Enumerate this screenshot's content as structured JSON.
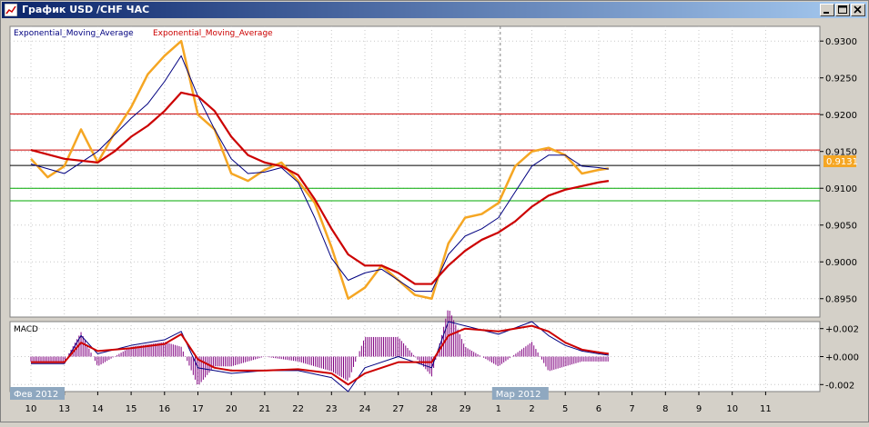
{
  "window": {
    "title": "График USD /CHF  ЧАС",
    "controls": {
      "minimize": "minimize-icon",
      "maximize": "maximize-icon",
      "close": "close-icon"
    }
  },
  "main_chart": {
    "legend_1": "Exponential_Moving_Average",
    "legend_2": "Exponential_Moving_Average",
    "legend_1_color": "#000080",
    "legend_2_color": "#cc0000",
    "price_tag": "0.9131"
  },
  "macd": {
    "label": "MACD"
  },
  "chart_data": [
    {
      "type": "line",
      "instrument": "USD/CHF",
      "timeframe": "1H",
      "y_ticks": [
        0.895,
        0.9,
        0.905,
        0.91,
        0.915,
        0.92,
        0.925,
        0.93
      ],
      "y_tick_labels": [
        "0.8950",
        "0.9000",
        "0.9050",
        "0.9100",
        "0.9150",
        "0.9200",
        "0.9250",
        "0.9300"
      ],
      "ylim": [
        0.8925,
        0.932
      ],
      "last_price": 0.9131,
      "horizontal_lines": [
        {
          "value": 0.9201,
          "color": "#cc0000"
        },
        {
          "value": 0.9152,
          "color": "#cc0000"
        },
        {
          "value": 0.9131,
          "color": "#000000"
        },
        {
          "value": 0.91,
          "color": "#00aa00"
        },
        {
          "value": 0.9083,
          "color": "#00aa00"
        }
      ],
      "x_tick_labels": [
        "10",
        "13",
        "14",
        "15",
        "16",
        "17",
        "20",
        "21",
        "22",
        "23",
        "24",
        "27",
        "28",
        "29",
        "1",
        "2",
        "5",
        "6",
        "7",
        "8",
        "9",
        "10",
        "11"
      ],
      "period_labels": [
        "Фев 2012",
        "Мар 2012"
      ],
      "series": [
        {
          "name": "price",
          "color": "#f5a623",
          "x": [
            0,
            0.5,
            1,
            1.5,
            2,
            2.5,
            3,
            3.5,
            4,
            4.5,
            5,
            5.5,
            6,
            6.5,
            7,
            7.5,
            8,
            8.5,
            9,
            9.5,
            10,
            10.5,
            11,
            11.5,
            12,
            12.5,
            13,
            13.5,
            14,
            14.5,
            15,
            15.5,
            16,
            16.5,
            17,
            17.3
          ],
          "values": [
            0.914,
            0.9115,
            0.913,
            0.918,
            0.9135,
            0.9175,
            0.921,
            0.9255,
            0.928,
            0.93,
            0.92,
            0.918,
            0.912,
            0.911,
            0.9125,
            0.9135,
            0.911,
            0.908,
            0.902,
            0.895,
            0.8965,
            0.8995,
            0.8975,
            0.8955,
            0.895,
            0.9025,
            0.906,
            0.9065,
            0.908,
            0.913,
            0.915,
            0.9155,
            0.9145,
            0.912,
            0.9125,
            0.9127
          ]
        },
        {
          "name": "ema_fast",
          "color": "#000080",
          "x": [
            0,
            1,
            2,
            3,
            3.5,
            4,
            4.5,
            5,
            5.5,
            6,
            6.5,
            7,
            7.5,
            8,
            8.5,
            9,
            9.5,
            10,
            10.5,
            11,
            11.5,
            12,
            12.5,
            13,
            13.5,
            14,
            14.5,
            15,
            15.5,
            16,
            16.5,
            17,
            17.3
          ],
          "values": [
            0.9133,
            0.912,
            0.915,
            0.9195,
            0.9215,
            0.9245,
            0.928,
            0.9225,
            0.918,
            0.914,
            0.912,
            0.9122,
            0.9128,
            0.9108,
            0.906,
            0.9005,
            0.8975,
            0.8985,
            0.899,
            0.8975,
            0.896,
            0.896,
            0.901,
            0.9035,
            0.9045,
            0.906,
            0.9095,
            0.913,
            0.9145,
            0.9145,
            0.913,
            0.9128,
            0.9126
          ]
        },
        {
          "name": "ema_slow",
          "color": "#cc0000",
          "x": [
            0,
            1,
            2,
            2.5,
            3,
            3.5,
            4,
            4.5,
            5,
            5.5,
            6,
            6.5,
            7,
            7.5,
            8,
            8.5,
            9,
            9.5,
            10,
            10.5,
            11,
            11.5,
            12,
            12.5,
            13,
            13.5,
            14,
            14.5,
            15,
            15.5,
            16,
            16.5,
            17,
            17.3
          ],
          "values": [
            0.9152,
            0.914,
            0.9135,
            0.915,
            0.917,
            0.9185,
            0.9205,
            0.923,
            0.9225,
            0.9205,
            0.917,
            0.9145,
            0.9135,
            0.913,
            0.9118,
            0.9085,
            0.9045,
            0.901,
            0.8995,
            0.8995,
            0.8985,
            0.897,
            0.897,
            0.8995,
            0.9015,
            0.903,
            0.904,
            0.9055,
            0.9075,
            0.909,
            0.9098,
            0.9103,
            0.9108,
            0.911
          ]
        }
      ]
    },
    {
      "type": "line",
      "name": "MACD",
      "y_ticks": [
        0.002,
        0.0,
        -0.002
      ],
      "y_tick_labels": [
        "+0.002",
        "+0.000",
        "-0.002"
      ],
      "ylim": [
        -0.0025,
        0.0025
      ],
      "series": [
        {
          "name": "macd",
          "color": "#000080",
          "x": [
            0,
            1,
            1.5,
            2,
            3,
            4,
            4.5,
            5,
            5.5,
            6,
            7,
            8,
            9,
            9.5,
            10,
            11,
            12,
            12.5,
            13,
            14,
            15,
            15.5,
            16,
            16.5,
            17,
            17.3
          ],
          "values": [
            -0.0005,
            -0.0005,
            0.0015,
            0.0002,
            0.0008,
            0.0012,
            0.0018,
            -0.0008,
            -0.001,
            -0.0012,
            -0.001,
            -0.001,
            -0.0015,
            -0.0025,
            -0.0008,
            0.0,
            -0.0008,
            0.0025,
            0.0022,
            0.0016,
            0.0025,
            0.0015,
            0.0008,
            0.0004,
            0.0002,
            0.0001
          ]
        },
        {
          "name": "signal",
          "color": "#cc0000",
          "x": [
            0,
            1,
            1.5,
            2,
            3,
            4,
            4.5,
            5,
            5.5,
            6,
            7,
            8,
            9,
            9.5,
            10,
            11,
            12,
            12.5,
            13,
            14,
            15,
            15.5,
            16,
            16.5,
            17,
            17.3
          ],
          "values": [
            -0.0004,
            -0.0004,
            0.001,
            0.0004,
            0.0006,
            0.0009,
            0.0016,
            -0.0002,
            -0.0008,
            -0.001,
            -0.001,
            -0.0009,
            -0.0012,
            -0.002,
            -0.0012,
            -0.0004,
            -0.0004,
            0.0015,
            0.002,
            0.0018,
            0.0022,
            0.0018,
            0.001,
            0.0005,
            0.0003,
            0.0002
          ]
        }
      ]
    }
  ]
}
